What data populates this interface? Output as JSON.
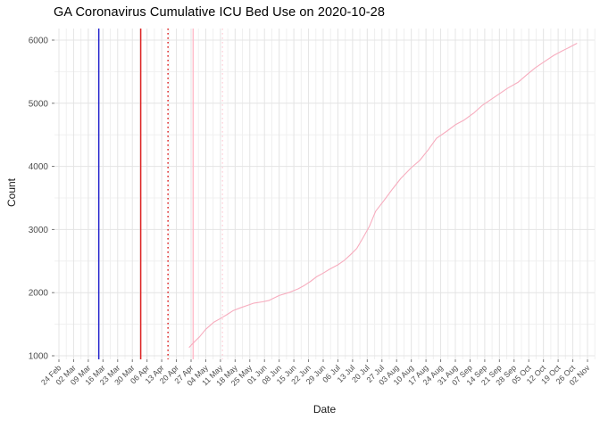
{
  "chart_data": {
    "type": "line",
    "title": "GA Coronavirus Cumulative ICU Bed Use on 2020-10-28",
    "xlabel": "Date",
    "ylabel": "Count",
    "x_range": [
      "2020-02-24",
      "2020-11-02"
    ],
    "ylim": [
      950,
      6185
    ],
    "grid": "major-and-minor",
    "legend": "none",
    "x_tick_labels": [
      "24 Feb",
      "02 Mar",
      "09 Mar",
      "16 Mar",
      "23 Mar",
      "30 Mar",
      "06 Apr",
      "13 Apr",
      "20 Apr",
      "27 Apr",
      "04 May",
      "11 May",
      "18 May",
      "25 May",
      "01 Jun",
      "08 Jun",
      "15 Jun",
      "22 Jun",
      "29 Jun",
      "06 Jul",
      "13 Jul",
      "20 Jul",
      "27 Jul",
      "03 Aug",
      "10 Aug",
      "17 Aug",
      "24 Aug",
      "31 Aug",
      "07 Sep",
      "14 Sep",
      "21 Sep",
      "28 Sep",
      "05 Oct",
      "12 Oct",
      "19 Oct",
      "26 Oct",
      "02 Nov"
    ],
    "y_ticks": [
      1000,
      2000,
      3000,
      4000,
      5000,
      6000
    ],
    "colors": {
      "series_line": "#f7acbe",
      "vline_blue": "#2323cc",
      "vline_red": "#de2626",
      "vline_pink": "#ffbcca",
      "vline_pink_light": "#ffd6de",
      "grid_major": "#e4e4e4",
      "grid_minor": "#f0f0f0",
      "tick_text": "#4d4d4d",
      "tick_mark": "#777777"
    },
    "vlines": [
      {
        "date": "2020-03-14",
        "color_key": "vline_blue",
        "style": "solid"
      },
      {
        "date": "2020-04-03",
        "color_key": "vline_red",
        "style": "solid"
      },
      {
        "date": "2020-04-16",
        "color_key": "vline_red",
        "style": "dotted"
      },
      {
        "date": "2020-04-28",
        "color_key": "vline_pink",
        "style": "solid"
      },
      {
        "date": "2020-05-12",
        "color_key": "vline_pink_light",
        "style": "dotted"
      }
    ],
    "series": [
      {
        "name": "cumulative-icu-bed-use",
        "color_key": "series_line",
        "points": [
          [
            "2020-04-26",
            1130
          ],
          [
            "2020-04-28",
            1200
          ],
          [
            "2020-05-01",
            1300
          ],
          [
            "2020-05-04",
            1420
          ],
          [
            "2020-05-08",
            1535
          ],
          [
            "2020-05-11",
            1590
          ],
          [
            "2020-05-14",
            1650
          ],
          [
            "2020-05-17",
            1715
          ],
          [
            "2020-05-21",
            1765
          ],
          [
            "2020-05-24",
            1800
          ],
          [
            "2020-05-27",
            1835
          ],
          [
            "2020-05-31",
            1855
          ],
          [
            "2020-06-03",
            1875
          ],
          [
            "2020-06-08",
            1955
          ],
          [
            "2020-06-13",
            2005
          ],
          [
            "2020-06-17",
            2060
          ],
          [
            "2020-06-20",
            2115
          ],
          [
            "2020-06-23",
            2180
          ],
          [
            "2020-06-26",
            2255
          ],
          [
            "2020-06-29",
            2310
          ],
          [
            "2020-07-02",
            2370
          ],
          [
            "2020-07-06",
            2440
          ],
          [
            "2020-07-09",
            2510
          ],
          [
            "2020-07-12",
            2600
          ],
          [
            "2020-07-15",
            2700
          ],
          [
            "2020-07-18",
            2870
          ],
          [
            "2020-07-21",
            3050
          ],
          [
            "2020-07-24",
            3290
          ],
          [
            "2020-07-28",
            3460
          ],
          [
            "2020-08-01",
            3640
          ],
          [
            "2020-08-05",
            3810
          ],
          [
            "2020-08-10",
            3980
          ],
          [
            "2020-08-14",
            4095
          ],
          [
            "2020-08-18",
            4260
          ],
          [
            "2020-08-22",
            4445
          ],
          [
            "2020-08-27",
            4560
          ],
          [
            "2020-08-31",
            4660
          ],
          [
            "2020-09-04",
            4730
          ],
          [
            "2020-09-09",
            4850
          ],
          [
            "2020-09-13",
            4970
          ],
          [
            "2020-09-17",
            5060
          ],
          [
            "2020-09-21",
            5150
          ],
          [
            "2020-09-25",
            5240
          ],
          [
            "2020-09-30",
            5335
          ],
          [
            "2020-10-04",
            5450
          ],
          [
            "2020-10-08",
            5560
          ],
          [
            "2020-10-12",
            5650
          ],
          [
            "2020-10-17",
            5760
          ],
          [
            "2020-10-21",
            5830
          ],
          [
            "2020-10-24",
            5880
          ],
          [
            "2020-10-28",
            5950
          ]
        ]
      }
    ]
  }
}
